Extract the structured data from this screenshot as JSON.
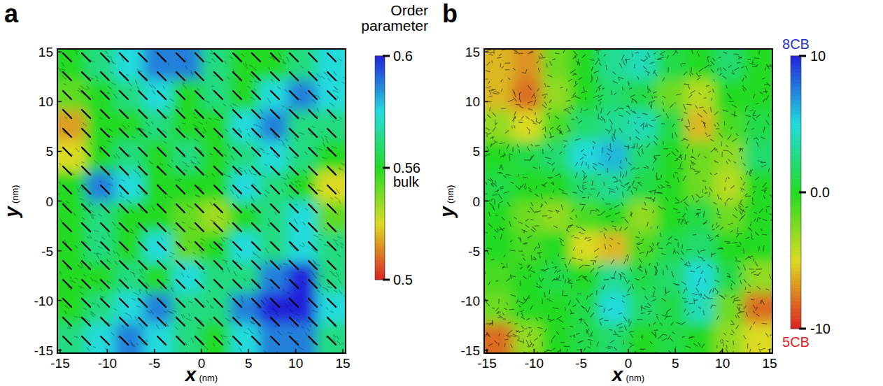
{
  "chart_data": [
    {
      "type": "heatmap",
      "panel_label": "a",
      "x_label": "x",
      "x_unit": "(nm)",
      "y_label": "y",
      "y_unit": "(nm)",
      "xlim": [
        -15.3,
        15.3
      ],
      "ylim": [
        -15.3,
        15.3
      ],
      "xticks": [
        -15,
        -10,
        -5,
        0,
        5,
        10,
        15
      ],
      "yticks": [
        -15,
        -10,
        -5,
        0,
        5,
        10,
        15
      ],
      "x_bins": [
        -15.3,
        -12.24,
        -9.18,
        -6.12,
        -3.06,
        0,
        3.06,
        6.12,
        9.18,
        12.24,
        15.3
      ],
      "y_bins": [
        -15.3,
        -12.24,
        -9.18,
        -6.12,
        -3.06,
        0,
        3.06,
        6.12,
        9.18,
        12.24,
        15.3
      ],
      "cells": [
        [
          0.57,
          0.58,
          0.59,
          0.58,
          0.57,
          0.56,
          0.58,
          0.59,
          0.59,
          0.57
        ],
        [
          0.56,
          0.57,
          0.58,
          0.59,
          0.57,
          0.57,
          0.59,
          0.6,
          0.6,
          0.58
        ],
        [
          0.56,
          0.56,
          0.57,
          0.56,
          0.58,
          0.57,
          0.57,
          0.59,
          0.6,
          0.57
        ],
        [
          0.56,
          0.57,
          0.56,
          0.58,
          0.55,
          0.56,
          0.58,
          0.57,
          0.58,
          0.57
        ],
        [
          0.56,
          0.57,
          0.56,
          0.56,
          0.55,
          0.54,
          0.56,
          0.57,
          0.58,
          0.55
        ],
        [
          0.56,
          0.59,
          0.58,
          0.56,
          0.56,
          0.56,
          0.58,
          0.57,
          0.56,
          0.53
        ],
        [
          0.53,
          0.56,
          0.57,
          0.56,
          0.57,
          0.56,
          0.57,
          0.58,
          0.57,
          0.56
        ],
        [
          0.52,
          0.56,
          0.56,
          0.57,
          0.56,
          0.56,
          0.58,
          0.59,
          0.57,
          0.57
        ],
        [
          0.55,
          0.56,
          0.57,
          0.58,
          0.56,
          0.57,
          0.56,
          0.58,
          0.59,
          0.58
        ],
        [
          0.56,
          0.57,
          0.58,
          0.59,
          0.59,
          0.57,
          0.56,
          0.56,
          0.57,
          0.58
        ]
      ],
      "colorbar": {
        "title": "Order parameter",
        "range": [
          0.5,
          0.6
        ],
        "ticks": [
          0.6,
          0.56,
          0.5
        ],
        "annotation": "bulk"
      }
    },
    {
      "type": "heatmap",
      "panel_label": "b",
      "x_label": "x",
      "x_unit": "(nm)",
      "y_label": "y",
      "y_unit": "(nm)",
      "xlim": [
        -15.3,
        15.3
      ],
      "ylim": [
        -15.3,
        15.3
      ],
      "xticks": [
        -15,
        -10,
        -5,
        0,
        5,
        10,
        15
      ],
      "yticks": [
        -15,
        -10,
        -5,
        0,
        5,
        10,
        15
      ],
      "x_bins": [
        -15.3,
        -12.24,
        -9.18,
        -6.12,
        -3.06,
        0,
        3.06,
        6.12,
        9.18,
        12.24,
        15.3
      ],
      "y_bins": [
        -15.3,
        -12.24,
        -9.18,
        -6.12,
        -3.06,
        0,
        3.06,
        6.12,
        9.18,
        12.24,
        15.3
      ],
      "cells": [
        [
          -8,
          -3,
          0,
          1,
          2,
          0,
          1,
          0,
          -3,
          -5
        ],
        [
          -2,
          0,
          0,
          1,
          5,
          2,
          1,
          4,
          -2,
          -8
        ],
        [
          -1,
          0,
          1,
          0,
          3,
          1,
          2,
          5,
          1,
          -3
        ],
        [
          0,
          -1,
          0,
          -5,
          -6,
          -1,
          1,
          2,
          0,
          0
        ],
        [
          0,
          -2,
          -3,
          -1,
          0,
          -3,
          0,
          1,
          -2,
          0
        ],
        [
          1,
          0,
          0,
          2,
          3,
          1,
          0,
          -2,
          -4,
          0
        ],
        [
          0,
          1,
          2,
          5,
          6,
          2,
          0,
          -2,
          -3,
          2
        ],
        [
          -3,
          -5,
          -1,
          2,
          3,
          4,
          1,
          -6,
          -1,
          1
        ],
        [
          -6,
          -8,
          -3,
          0,
          2,
          1,
          -2,
          -4,
          0,
          0
        ],
        [
          -6,
          -7,
          -2,
          0,
          3,
          4,
          1,
          0,
          2,
          0
        ]
      ],
      "colorbar": {
        "range": [
          -10,
          10
        ],
        "ticks": [
          10,
          {
            "value": 0,
            "label": "0.0"
          },
          -10
        ],
        "top_label": "8CB",
        "bottom_label": "5CB"
      }
    }
  ]
}
